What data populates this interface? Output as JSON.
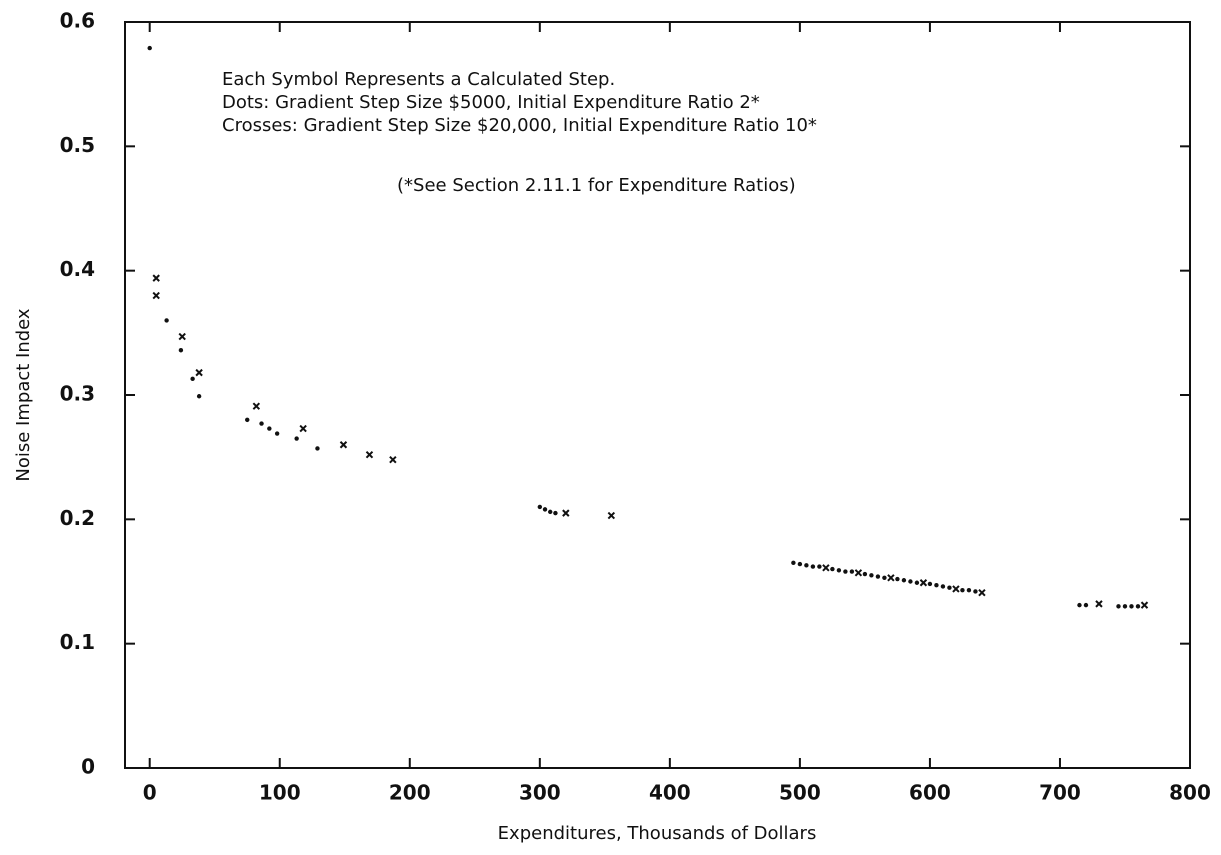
{
  "chart_data": {
    "type": "scatter",
    "xlabel": "Expenditures, Thousands of Dollars",
    "ylabel": "Noise Impact Index",
    "annotations": [
      "Each Symbol Represents a Calculated Step.",
      "Dots: Gradient Step Size $5000, Initial Expenditure Ratio 2*",
      "Crosses: Gradient Step Size $20,000, Initial Expenditure Ratio 10*",
      "(*See Section 2.11.1 for Expenditure Ratios)"
    ],
    "xlim": [
      -19,
      800
    ],
    "xticks": [
      0,
      100,
      200,
      300,
      400,
      500,
      600,
      700,
      800
    ],
    "ylim": [
      0,
      0.6
    ],
    "yticks": [
      0,
      0.1,
      0.2,
      0.3,
      0.4,
      0.5,
      0.6
    ],
    "series": [
      {
        "marker": "dot",
        "color": "#111111",
        "x": [
          0,
          13,
          24,
          33,
          38,
          75,
          86,
          92,
          98,
          113,
          129,
          300,
          304,
          308,
          312,
          495,
          500,
          505,
          510,
          515,
          525,
          530,
          535,
          540,
          550,
          555,
          560,
          565,
          575,
          580,
          585,
          590,
          600,
          605,
          610,
          615,
          625,
          630,
          635,
          715,
          720,
          745,
          750,
          755,
          760
        ],
        "values": [
          0.579,
          0.36,
          0.336,
          0.313,
          0.299,
          0.28,
          0.277,
          0.273,
          0.269,
          0.265,
          0.257,
          0.21,
          0.208,
          0.206,
          0.205,
          0.165,
          0.164,
          0.163,
          0.162,
          0.162,
          0.16,
          0.159,
          0.158,
          0.158,
          0.156,
          0.155,
          0.154,
          0.153,
          0.152,
          0.151,
          0.15,
          0.149,
          0.148,
          0.147,
          0.146,
          0.145,
          0.143,
          0.143,
          0.142,
          0.131,
          0.131,
          0.13,
          0.13,
          0.13,
          0.13
        ]
      },
      {
        "marker": "cross",
        "color": "#111111",
        "x": [
          5,
          5,
          25,
          38,
          82,
          118,
          149,
          169,
          187,
          320,
          355,
          520,
          545,
          570,
          595,
          620,
          640,
          730,
          765
        ],
        "values": [
          0.394,
          0.38,
          0.347,
          0.318,
          0.291,
          0.273,
          0.26,
          0.252,
          0.248,
          0.205,
          0.203,
          0.161,
          0.157,
          0.153,
          0.149,
          0.144,
          0.141,
          0.132,
          0.131
        ]
      }
    ]
  }
}
